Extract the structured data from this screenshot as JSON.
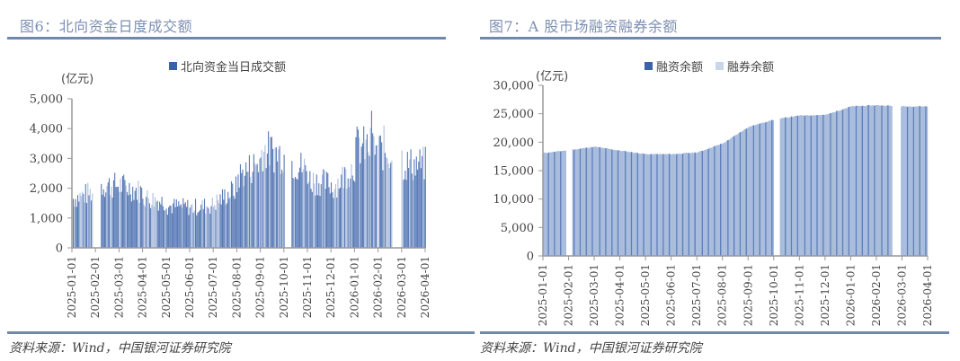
{
  "left": {
    "title": "图6：北向资金日度成交额",
    "unit": "(亿元)",
    "legend": [
      {
        "label": "北向资金当日成交额",
        "color": "#3a62a8"
      }
    ],
    "source": "资料来源：Wind，中国银河证券研究院"
  },
  "right": {
    "title": "图7：A 股市场融资融券余额",
    "unit": "(亿元)",
    "legend": [
      {
        "label": "融资余额",
        "color": "#3a62a8"
      },
      {
        "label": "融券余额",
        "color": "#c9d6ea"
      }
    ],
    "source": "资料来源：Wind，中国银河证券研究院"
  },
  "colors": {
    "title": "#7d8fb3",
    "rule": "#7088ac",
    "bar_dark": "#3a62a8",
    "bar_light": "#a9bcdc"
  },
  "chart_data": [
    {
      "type": "bar",
      "title": "图6：北向资金日度成交额",
      "ylabel": "(亿元)",
      "xlabel": "",
      "ylim": [
        0,
        5000
      ],
      "yticks": [
        0,
        1000,
        2000,
        3000,
        4000,
        5000
      ],
      "ytick_labels": [
        "0",
        "1,000",
        "2,000",
        "3,000",
        "4,000",
        "5,000"
      ],
      "xtick_labels": [
        "2025-01-01",
        "2025-02-01",
        "2025-03-01",
        "2025-04-01",
        "2025-05-01",
        "2025-06-01",
        "2025-07-01",
        "2025-08-01",
        "2025-09-01",
        "2025-10-01",
        "2025-11-01",
        "2025-12-01",
        "2026-01-01",
        "2026-02-01",
        "2026-03-01",
        "2026-04-01"
      ],
      "legend": [
        "北向资金当日成交额"
      ],
      "series": [
        {
          "name": "北向资金当日成交额",
          "monthly_approx": {
            "categories": [
              "2025-01",
              "2025-02",
              "2025-03",
              "2025-04",
              "2025-05",
              "2025-06",
              "2025-07",
              "2025-08",
              "2025-09",
              "2025-10",
              "2025-11",
              "2025-12",
              "2026-01",
              "2026-02",
              "2026-03"
            ],
            "values": [
              1650,
              2100,
              2100,
              1700,
              1400,
              1350,
              1500,
              2400,
              3300,
              3000,
              2300,
              2000,
              3400,
              3300,
              2800
            ]
          },
          "peak": 4600,
          "min": 1050
        }
      ],
      "grid": false,
      "legend_position": "top"
    },
    {
      "type": "bar",
      "title": "图7：A 股市场融资融券余额",
      "ylabel": "(亿元)",
      "xlabel": "",
      "ylim": [
        0,
        30000
      ],
      "yticks": [
        0,
        5000,
        10000,
        15000,
        20000,
        25000,
        30000
      ],
      "ytick_labels": [
        "0",
        "5,000",
        "10,000",
        "15,000",
        "20,000",
        "25,000",
        "30,000"
      ],
      "xtick_labels": [
        "2025-01-01",
        "2025-02-01",
        "2025-03-01",
        "2025-04-01",
        "2025-05-01",
        "2025-06-01",
        "2025-07-01",
        "2025-08-01",
        "2025-09-01",
        "2025-10-01",
        "2025-11-01",
        "2025-12-01",
        "2026-01-01",
        "2026-02-01",
        "2026-03-01",
        "2026-04-01"
      ],
      "legend": [
        "融资余额",
        "融券余额"
      ],
      "categories": [
        "2025-01",
        "2025-02",
        "2025-03",
        "2025-04",
        "2025-05",
        "2025-06",
        "2025-07",
        "2025-08",
        "2025-09",
        "2025-10",
        "2025-11",
        "2025-12",
        "2026-01",
        "2026-02",
        "2026-03"
      ],
      "series": [
        {
          "name": "融资余额",
          "values": [
            18100,
            18600,
            19200,
            18500,
            17900,
            17900,
            18200,
            19800,
            22700,
            24000,
            24700,
            24800,
            26300,
            26500,
            26300
          ]
        },
        {
          "name": "融券余额",
          "values": [
            120,
            120,
            120,
            110,
            110,
            110,
            110,
            120,
            130,
            140,
            140,
            140,
            150,
            150,
            150
          ]
        }
      ],
      "grid": false,
      "legend_position": "top"
    }
  ]
}
